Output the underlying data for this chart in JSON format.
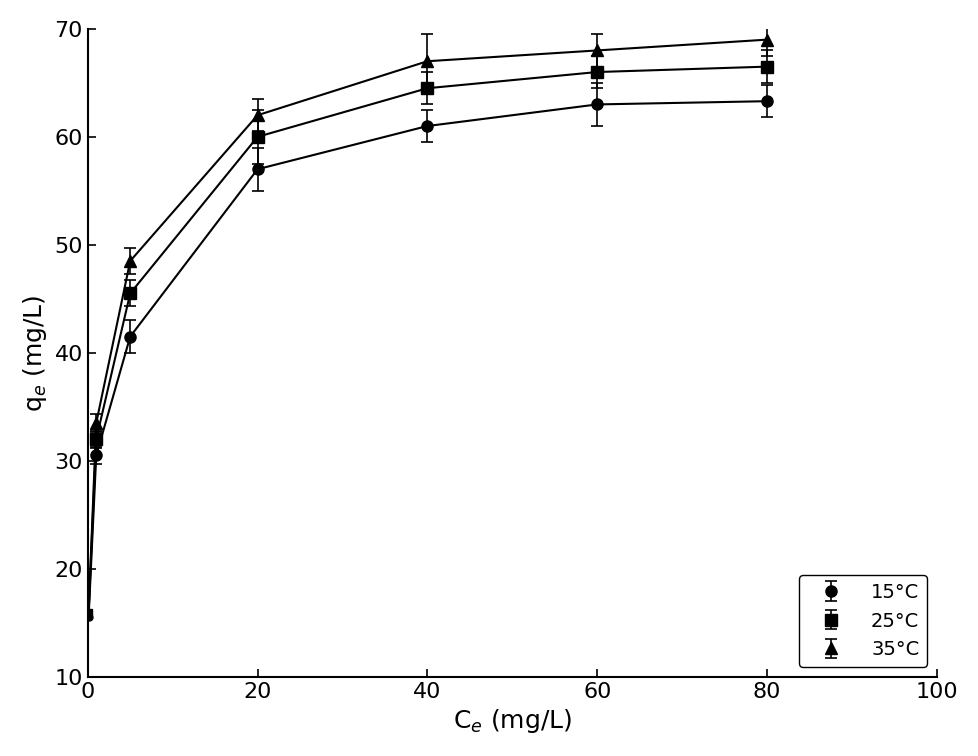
{
  "x_15": [
    0.1,
    1,
    5,
    20,
    40,
    60,
    80
  ],
  "y_15": [
    15.5,
    30.5,
    41.5,
    57.0,
    61.0,
    63.0,
    63.3
  ],
  "yerr_15": [
    0.5,
    0.8,
    1.5,
    2.0,
    1.5,
    2.0,
    1.5
  ],
  "x_25": [
    0.1,
    1,
    5,
    20,
    40,
    60,
    80
  ],
  "y_25": [
    16.0,
    32.0,
    45.5,
    60.0,
    64.5,
    66.0,
    66.5
  ],
  "yerr_25": [
    0.5,
    0.8,
    1.2,
    2.5,
    1.5,
    1.5,
    1.5
  ],
  "x_35": [
    0.1,
    1,
    5,
    20,
    40,
    60,
    80
  ],
  "y_35": [
    16.0,
    33.5,
    48.5,
    62.0,
    67.0,
    68.0,
    69.0
  ],
  "yerr_35": [
    0.5,
    0.8,
    1.2,
    1.5,
    2.5,
    1.5,
    1.5
  ],
  "xlabel": "C$_e$ (mg/L)",
  "ylabel": "q$_e$ (mg/L)",
  "xlim": [
    0,
    100
  ],
  "ylim": [
    10,
    70
  ],
  "yticks": [
    10,
    20,
    30,
    40,
    50,
    60,
    70
  ],
  "xticks": [
    0,
    20,
    40,
    60,
    80,
    100
  ],
  "legend_labels": [
    "15°C",
    "25°C",
    "35°C"
  ],
  "color": "#000000",
  "background_color": "#ffffff",
  "label_fontsize": 18,
  "tick_fontsize": 16,
  "legend_fontsize": 14
}
